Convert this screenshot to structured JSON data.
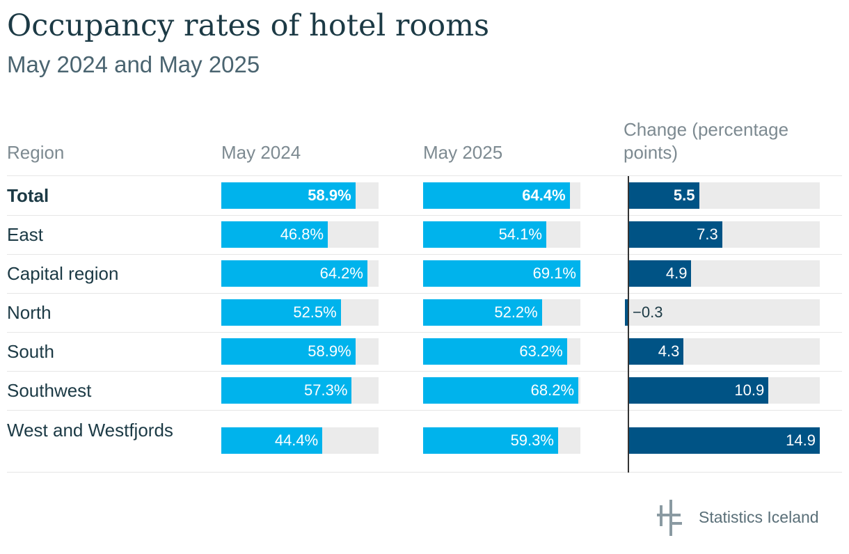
{
  "title": "Occupancy rates of hotel rooms",
  "subtitle": "May 2024 and May 2025",
  "columns": {
    "region": "Region",
    "may2024": "May 2024",
    "may2025": "May 2025",
    "change": "Change (percentage points)"
  },
  "brand": "Statistics Iceland",
  "colors": {
    "occupancy_bar": "#00b3ec",
    "change_bar": "#005385",
    "track": "#ebebeb",
    "title": "#1c3a45"
  },
  "chart_data": {
    "type": "bar",
    "orientation": "horizontal",
    "categories": [
      "Total",
      "East",
      "Capital region",
      "North",
      "South",
      "Southwest",
      "West and Westfjords"
    ],
    "series": [
      {
        "name": "May 2024",
        "unit": "%",
        "values": [
          58.9,
          46.8,
          64.2,
          52.5,
          58.9,
          57.3,
          44.4
        ],
        "labels": [
          "58.9%",
          "46.8%",
          "64.2%",
          "52.5%",
          "58.9%",
          "57.3%",
          "44.4%"
        ]
      },
      {
        "name": "May 2025",
        "unit": "%",
        "values": [
          64.4,
          54.1,
          69.1,
          52.2,
          63.2,
          68.2,
          59.3
        ],
        "labels": [
          "64.4%",
          "54.1%",
          "69.1%",
          "52.2%",
          "63.2%",
          "68.2%",
          "59.3%"
        ]
      },
      {
        "name": "Change (percentage points)",
        "values": [
          5.5,
          7.3,
          4.9,
          -0.3,
          4.3,
          10.9,
          14.9
        ],
        "labels": [
          "5.5",
          "7.3",
          "4.9",
          "−0.3",
          "4.3",
          "10.9",
          "14.9"
        ]
      }
    ],
    "occupancy_max": 69.1,
    "change_max": 14.9,
    "bold_rows": [
      "Total"
    ]
  }
}
